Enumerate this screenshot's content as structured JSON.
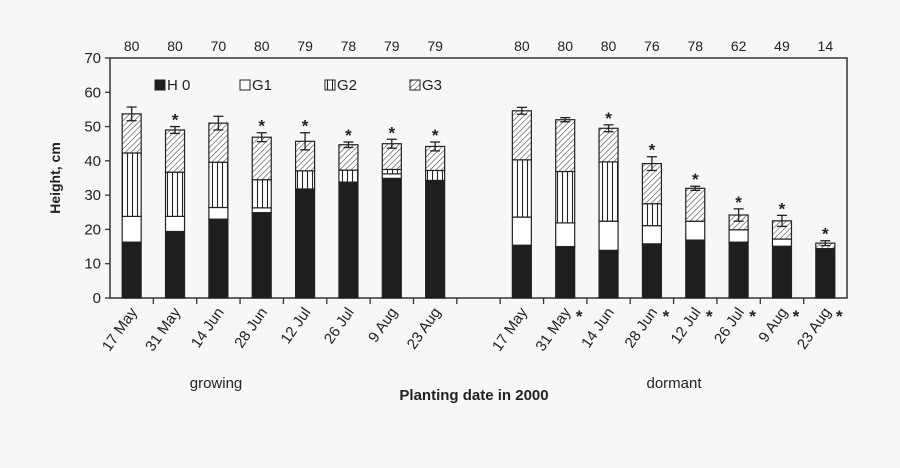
{
  "chart_data": {
    "type": "bar",
    "stacked": true,
    "title": "",
    "xlabel": "Planting date in 2000",
    "ylabel": "Height, cm",
    "ylim": [
      0,
      70
    ],
    "yticks": [
      0,
      10,
      20,
      30,
      40,
      50,
      60,
      70
    ],
    "grid": false,
    "legend_position": "top-left",
    "groups": [
      {
        "label": "growing",
        "categories": [
          "17 May",
          "31 May",
          "14 Jun",
          "28 Jun",
          "12 Jul",
          "26 Jul",
          "9 Aug",
          "23 Aug"
        ]
      },
      {
        "label": "dormant",
        "categories": [
          "17 May",
          "31 May",
          "14 Jun",
          "28 Jun",
          "12 Jul",
          "26 Jul",
          "9 Aug",
          "23 Aug"
        ]
      }
    ],
    "top_counts": [
      [
        "80",
        "80",
        "70",
        "80",
        "79",
        "78",
        "79",
        "79"
      ],
      [
        "80",
        "80",
        "80",
        "76",
        "78",
        "62",
        "49",
        "14"
      ]
    ],
    "series": [
      {
        "name": "H 0",
        "values": [
          [
            16.3,
            19.4,
            23.0,
            24.9,
            31.8,
            33.7,
            34.9,
            34.3
          ],
          [
            15.4,
            15.0,
            13.9,
            15.8,
            16.9,
            16.3,
            15.1,
            14.4
          ]
        ]
      },
      {
        "name": "G1",
        "values": [
          [
            7.5,
            4.4,
            3.4,
            1.4,
            0,
            0.1,
            1.3,
            0
          ],
          [
            8.2,
            6.9,
            8.5,
            5.3,
            5.5,
            3.6,
            2.1,
            0
          ]
        ]
      },
      {
        "name": "G2",
        "values": [
          [
            18.5,
            12.9,
            13.2,
            8.2,
            5.3,
            3.5,
            1.3,
            2.9
          ],
          [
            16.7,
            15.0,
            17.3,
            6.4,
            0,
            0,
            0,
            0
          ]
        ]
      },
      {
        "name": "G3",
        "values": [
          [
            11.4,
            12.3,
            11.4,
            12.4,
            8.6,
            7.4,
            7.5,
            7.0
          ],
          [
            14.3,
            15.1,
            9.8,
            11.7,
            9.6,
            4.3,
            5.3,
            1.6
          ]
        ]
      }
    ],
    "error": [
      [
        2.0,
        1.0,
        2.0,
        1.3,
        2.5,
        0.8,
        1.3,
        1.3
      ],
      [
        1.0,
        0.6,
        1.0,
        2.0,
        0.6,
        1.8,
        1.6,
        0.7
      ]
    ],
    "bar_star": [
      [
        false,
        true,
        false,
        true,
        true,
        true,
        true,
        true
      ],
      [
        false,
        false,
        true,
        true,
        true,
        true,
        true,
        true
      ]
    ],
    "label_star": [
      [
        false,
        false,
        false,
        false,
        false,
        false,
        false,
        false
      ],
      [
        false,
        true,
        false,
        true,
        true,
        true,
        true,
        true
      ]
    ],
    "star_symbol": "*"
  }
}
